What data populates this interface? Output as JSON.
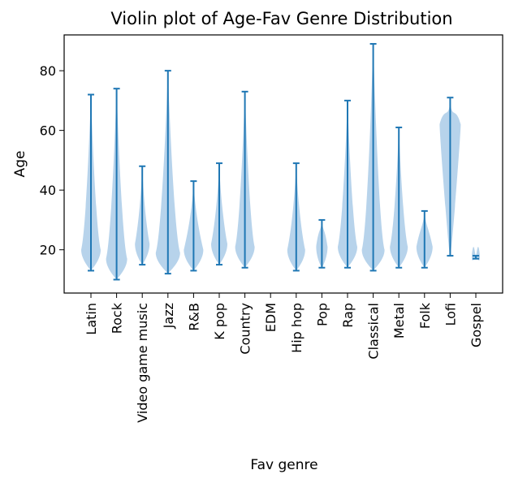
{
  "chart_data": {
    "type": "violin",
    "title": "Violin plot of Age-Fav Genre Distribution",
    "xlabel": "Fav genre",
    "ylabel": "Age",
    "ylim": [
      5.5,
      92
    ],
    "yticks": [
      20,
      40,
      60,
      80
    ],
    "grid": false,
    "color": "#1f77b4",
    "fill_color": "#aacbe7",
    "categories": [
      "Latin",
      "Rock",
      "Video game music",
      "Jazz",
      "R&B",
      "K pop",
      "Country",
      "EDM",
      "Hip hop",
      "Pop",
      "Rap",
      "Classical",
      "Metal",
      "Folk",
      "Lofi",
      "Gospel"
    ],
    "series": [
      {
        "category": "Latin",
        "min": 13,
        "max": 72
      },
      {
        "category": "Rock",
        "min": 10,
        "max": 74
      },
      {
        "category": "Video game music",
        "min": 15,
        "max": 48
      },
      {
        "category": "Jazz",
        "min": 12,
        "max": 80
      },
      {
        "category": "R&B",
        "min": 13,
        "max": 43
      },
      {
        "category": "K pop",
        "min": 15,
        "max": 49
      },
      {
        "category": "Country",
        "min": 14,
        "max": 73
      },
      {
        "category": "EDM",
        "min": null,
        "max": null
      },
      {
        "category": "Hip hop",
        "min": 13,
        "max": 49
      },
      {
        "category": "Pop",
        "min": 14,
        "max": 30
      },
      {
        "category": "Rap",
        "min": 14,
        "max": 70
      },
      {
        "category": "Classical",
        "min": 13,
        "max": 89
      },
      {
        "category": "Metal",
        "min": 14,
        "max": 61
      },
      {
        "category": "Folk",
        "min": 14,
        "max": 33
      },
      {
        "category": "Lofi",
        "min": 18,
        "max": 71
      },
      {
        "category": "Gospel",
        "min": 17,
        "max": 18
      }
    ]
  }
}
